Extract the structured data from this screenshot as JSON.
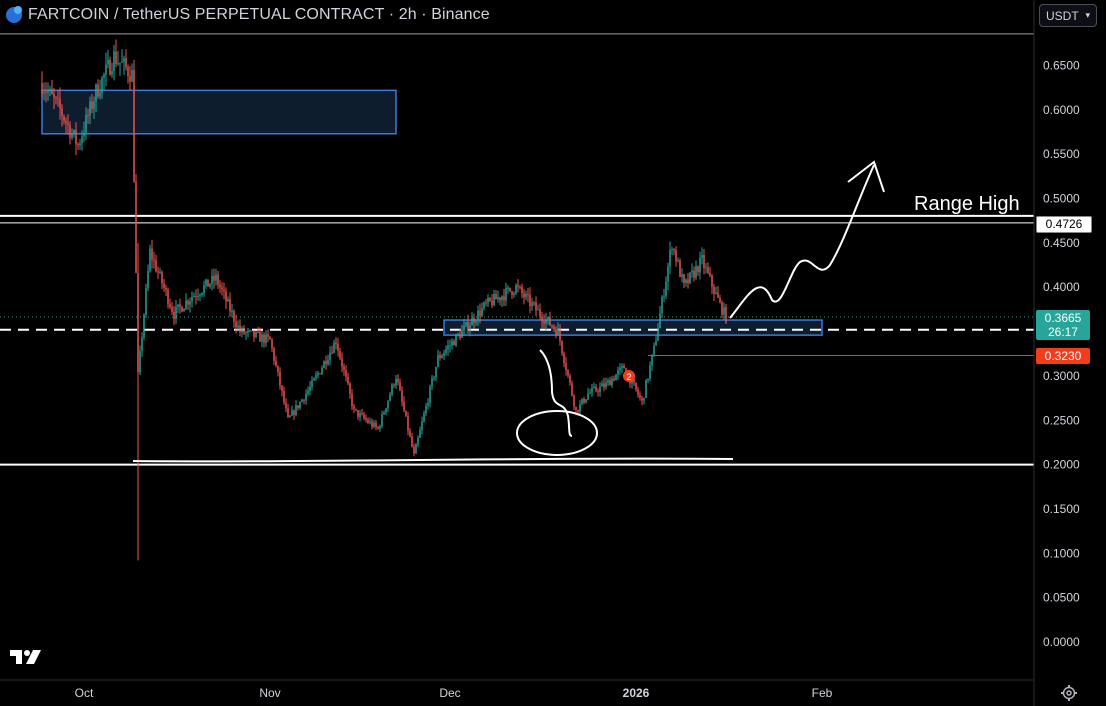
{
  "header": {
    "title": "FARTCOIN / TetherUS PERPETUAL CONTRACT · 2h · Binance"
  },
  "currency_selector": {
    "value": "USDT"
  },
  "colors": {
    "background": "#000000",
    "up": "#26a69a",
    "down": "#ef5350",
    "zone_fill": "#0f2236",
    "zone_stroke": "#3c78d8",
    "marker": "#f23d1d",
    "last_price_bg": "#26a69a",
    "level_bg": "#f23d1d",
    "annotation": "#ffffff"
  },
  "annotations": {
    "range_high": "Range High",
    "marker_glyph": "2"
  },
  "price_labels": {
    "range_high_value": "0.4726",
    "last_price": "0.3665",
    "countdown": "26:17",
    "level_price": "0.3230"
  },
  "chart_data": {
    "type": "candlestick",
    "y_axis": {
      "ticks": [
        "0.6500",
        "0.6000",
        "0.5500",
        "0.5000",
        "0.4500",
        "0.4000",
        "0.3500",
        "0.3000",
        "0.2500",
        "0.2000",
        "0.1500",
        "0.1000",
        "0.0500",
        "0.0000"
      ],
      "range": [
        -0.01,
        0.69
      ]
    },
    "x_axis": {
      "ticks": [
        "Oct",
        "Nov",
        "Dec",
        "2026",
        "Feb"
      ]
    },
    "price_path": [
      [
        "2025-09-24",
        0.63
      ],
      [
        "2025-09-27",
        0.6
      ],
      [
        "2025-09-30",
        0.56
      ],
      [
        "2025-10-03",
        0.62
      ],
      [
        "2025-10-06",
        0.66
      ],
      [
        "2025-10-09",
        0.64
      ],
      [
        "2025-10-10",
        0.3
      ],
      [
        "2025-10-12",
        0.44
      ],
      [
        "2025-10-16",
        0.37
      ],
      [
        "2025-10-19",
        0.39
      ],
      [
        "2025-10-23",
        0.41
      ],
      [
        "2025-10-27",
        0.35
      ],
      [
        "2025-11-01",
        0.34
      ],
      [
        "2025-11-04",
        0.25
      ],
      [
        "2025-11-08",
        0.29
      ],
      [
        "2025-11-12",
        0.34
      ],
      [
        "2025-11-15",
        0.26
      ],
      [
        "2025-11-19",
        0.24
      ],
      [
        "2025-11-22",
        0.3
      ],
      [
        "2025-11-25",
        0.21
      ],
      [
        "2025-11-29",
        0.32
      ],
      [
        "2025-12-03",
        0.35
      ],
      [
        "2025-12-07",
        0.38
      ],
      [
        "2025-12-12",
        0.4
      ],
      [
        "2025-12-16",
        0.37
      ],
      [
        "2025-12-19",
        0.35
      ],
      [
        "2025-12-22",
        0.26
      ],
      [
        "2025-12-24",
        0.28
      ],
      [
        "2025-12-27",
        0.29
      ],
      [
        "2025-12-30",
        0.31
      ],
      [
        "2026-01-02",
        0.27
      ],
      [
        "2026-01-04",
        0.33
      ],
      [
        "2026-01-07",
        0.45
      ],
      [
        "2026-01-09",
        0.4
      ],
      [
        "2026-01-12",
        0.43
      ],
      [
        "2026-01-15",
        0.38
      ],
      [
        "2026-01-16",
        0.3665
      ]
    ],
    "levels": [
      {
        "name": "upper-top-line",
        "price": 0.6857
      },
      {
        "name": "range-high-line-1",
        "price": 0.4805
      },
      {
        "name": "range-high-line-2",
        "price": 0.4726
      },
      {
        "name": "range-low-line",
        "price": 0.2
      },
      {
        "name": "support-dashed-line",
        "price": 0.352
      },
      {
        "name": "level-line",
        "price": 0.323
      }
    ],
    "zones": [
      {
        "name": "upper-supply-zone",
        "start": "2025-09-24",
        "end": "2025-11-22",
        "high": 0.622,
        "low": 0.573
      },
      {
        "name": "support-zone",
        "start": "2025-11-30",
        "end": "2026-02-01",
        "high": 0.363,
        "low": 0.346
      }
    ]
  }
}
